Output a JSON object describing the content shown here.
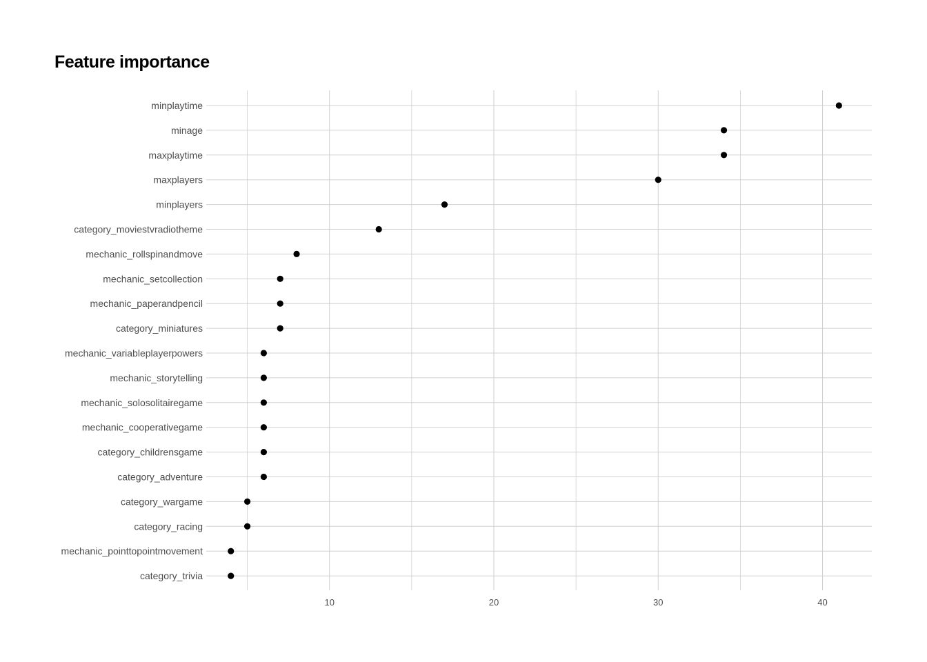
{
  "chart_data": {
    "type": "scatter",
    "title": "Feature importance",
    "xlabel": "",
    "ylabel": "",
    "xlim": [
      2.5,
      43
    ],
    "x_ticks": [
      10,
      20,
      30,
      40
    ],
    "x_minor_gridlines": [
      5,
      15,
      25,
      35
    ],
    "grid": true,
    "legend": "none",
    "point_color": "#000000",
    "grid_color": "#d0d0d0",
    "categories": [
      "minplaytime",
      "minage",
      "maxplaytime",
      "maxplayers",
      "minplayers",
      "category_moviestvradiotheme",
      "mechanic_rollspinandmove",
      "mechanic_setcollection",
      "mechanic_paperandpencil",
      "category_miniatures",
      "mechanic_variableplayerpowers",
      "mechanic_storytelling",
      "mechanic_solosolitairegame",
      "mechanic_cooperativegame",
      "category_childrensgame",
      "category_adventure",
      "category_wargame",
      "category_racing",
      "mechanic_pointtopointmovement",
      "category_trivia"
    ],
    "values": [
      41,
      34,
      34,
      30,
      17,
      13,
      8,
      7,
      7,
      7,
      6,
      6,
      6,
      6,
      6,
      6,
      5,
      5,
      4,
      4
    ]
  }
}
